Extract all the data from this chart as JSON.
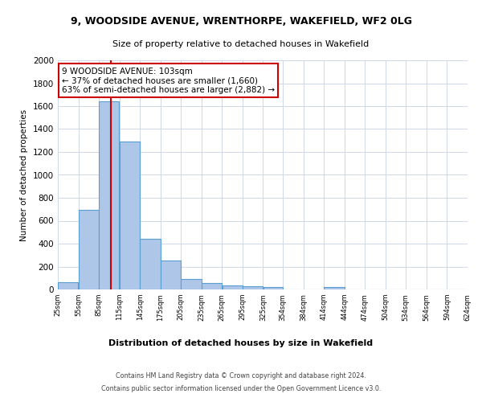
{
  "title1": "9, WOODSIDE AVENUE, WRENTHORPE, WAKEFIELD, WF2 0LG",
  "title2": "Size of property relative to detached houses in Wakefield",
  "xlabel": "Distribution of detached houses by size in Wakefield",
  "ylabel": "Number of detached properties",
  "bar_color": "#aec6e8",
  "bar_edge_color": "#5a9fd4",
  "annotation_line1": "9 WOODSIDE AVENUE: 103sqm",
  "annotation_line2": "← 37% of detached houses are smaller (1,660)",
  "annotation_line3": "63% of semi-detached houses are larger (2,882) →",
  "annotation_box_color": "#ffffff",
  "annotation_border_color": "#cc0000",
  "vline_x": 103,
  "vline_color": "#cc0000",
  "bins": [
    25,
    55,
    85,
    115,
    145,
    175,
    205,
    235,
    265,
    295,
    325,
    354,
    384,
    414,
    444,
    474,
    504,
    534,
    564,
    594,
    624
  ],
  "values": [
    65,
    695,
    1640,
    1290,
    445,
    255,
    88,
    55,
    38,
    28,
    18,
    0,
    0,
    18,
    0,
    0,
    0,
    0,
    0,
    0
  ],
  "ylim": [
    0,
    2000
  ],
  "yticks": [
    0,
    200,
    400,
    600,
    800,
    1000,
    1200,
    1400,
    1600,
    1800,
    2000
  ],
  "footer1": "Contains HM Land Registry data © Crown copyright and database right 2024.",
  "footer2": "Contains public sector information licensed under the Open Government Licence v3.0.",
  "bg_color": "#ffffff",
  "grid_color": "#d0d8e8"
}
